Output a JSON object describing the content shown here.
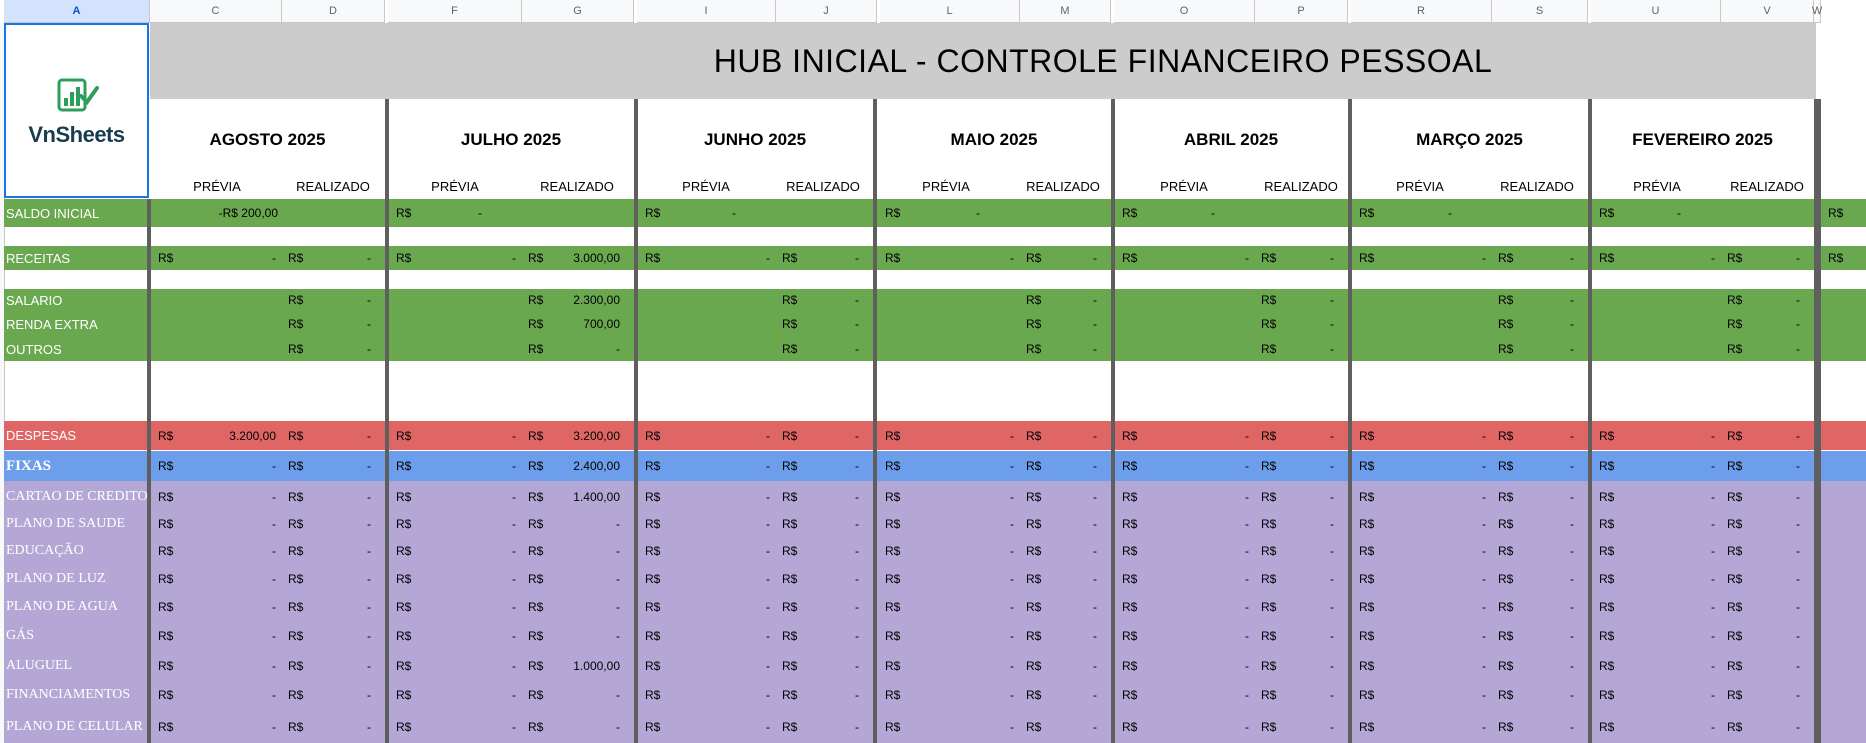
{
  "column_headers": [
    "A",
    "C",
    "D",
    "F",
    "G",
    "I",
    "J",
    "L",
    "M",
    "O",
    "P",
    "R",
    "S",
    "U",
    "V",
    "W"
  ],
  "title": "HUB INICIAL - CONTROLE FINANCEIRO PESSOAL",
  "logo_text": "VnSheets",
  "currency": "R$",
  "months": [
    {
      "name": "AGOSTO 2025",
      "previa": "PRÉVIA",
      "realizado": "REALIZADO"
    },
    {
      "name": "JULHO 2025",
      "previa": "PRÉVIA",
      "realizado": "REALIZADO"
    },
    {
      "name": "JUNHO 2025",
      "previa": "PRÉVIA",
      "realizado": "REALIZADO"
    },
    {
      "name": "MAIO 2025",
      "previa": "PRÉVIA",
      "realizado": "REALIZADO"
    },
    {
      "name": "ABRIL 2025",
      "previa": "PRÉVIA",
      "realizado": "REALIZADO"
    },
    {
      "name": "MARÇO 2025",
      "previa": "PRÉVIA",
      "realizado": "REALIZADO"
    },
    {
      "name": "FEVEREIRO 2025",
      "previa": "PRÉVIA",
      "realizado": "REALIZADO"
    }
  ],
  "rows": {
    "saldo_inicial": {
      "label": "SALDO INICIAL",
      "values": [
        [
          "-R$ 200,00",
          null
        ],
        [
          "-",
          null
        ],
        [
          "-",
          null
        ],
        [
          "-",
          null
        ],
        [
          "-",
          null
        ],
        [
          "-",
          null
        ],
        [
          "-",
          null
        ]
      ]
    },
    "receitas": {
      "label": "RECEITAS",
      "values": [
        [
          "-",
          "-"
        ],
        [
          "-",
          "3.000,00"
        ],
        [
          "-",
          "-"
        ],
        [
          "-",
          "-"
        ],
        [
          "-",
          "-"
        ],
        [
          "-",
          "-"
        ],
        [
          "-",
          "-"
        ]
      ]
    },
    "salario": {
      "label": "SALARIO",
      "values": [
        [
          null,
          "-"
        ],
        [
          null,
          "2.300,00"
        ],
        [
          null,
          "-"
        ],
        [
          null,
          "-"
        ],
        [
          null,
          "-"
        ],
        [
          null,
          "-"
        ],
        [
          null,
          "-"
        ]
      ]
    },
    "renda_extra": {
      "label": "RENDA EXTRA",
      "values": [
        [
          null,
          "-"
        ],
        [
          null,
          "700,00"
        ],
        [
          null,
          "-"
        ],
        [
          null,
          "-"
        ],
        [
          null,
          "-"
        ],
        [
          null,
          "-"
        ],
        [
          null,
          "-"
        ]
      ]
    },
    "outros": {
      "label": "OUTROS",
      "values": [
        [
          null,
          "-"
        ],
        [
          null,
          "-"
        ],
        [
          null,
          "-"
        ],
        [
          null,
          "-"
        ],
        [
          null,
          "-"
        ],
        [
          null,
          "-"
        ],
        [
          null,
          "-"
        ]
      ]
    },
    "despesas": {
      "label": "DESPESAS",
      "values": [
        [
          "3.200,00",
          "-"
        ],
        [
          "-",
          "3.200,00"
        ],
        [
          "-",
          "-"
        ],
        [
          "-",
          "-"
        ],
        [
          "-",
          "-"
        ],
        [
          "-",
          "-"
        ],
        [
          "-",
          "-"
        ]
      ]
    },
    "fixas": {
      "label": "FIXAS",
      "values": [
        [
          "-",
          "-"
        ],
        [
          "-",
          "2.400,00"
        ],
        [
          "-",
          "-"
        ],
        [
          "-",
          "-"
        ],
        [
          "-",
          "-"
        ],
        [
          "-",
          "-"
        ],
        [
          "-",
          "-"
        ]
      ]
    },
    "cartao": {
      "label": "CARTAO DE CREDITO",
      "values": [
        [
          "-",
          "-"
        ],
        [
          "-",
          "1.400,00"
        ],
        [
          "-",
          "-"
        ],
        [
          "-",
          "-"
        ],
        [
          "-",
          "-"
        ],
        [
          "-",
          "-"
        ],
        [
          "-",
          "-"
        ]
      ]
    },
    "saude": {
      "label": "PLANO DE SAUDE",
      "values": [
        [
          "-",
          "-"
        ],
        [
          "-",
          "-"
        ],
        [
          "-",
          "-"
        ],
        [
          "-",
          "-"
        ],
        [
          "-",
          "-"
        ],
        [
          "-",
          "-"
        ],
        [
          "-",
          "-"
        ]
      ]
    },
    "educacao": {
      "label": "EDUCAÇÃO",
      "values": [
        [
          "-",
          "-"
        ],
        [
          "-",
          "-"
        ],
        [
          "-",
          "-"
        ],
        [
          "-",
          "-"
        ],
        [
          "-",
          "-"
        ],
        [
          "-",
          "-"
        ],
        [
          "-",
          "-"
        ]
      ]
    },
    "luz": {
      "label": "PLANO DE LUZ",
      "values": [
        [
          "-",
          "-"
        ],
        [
          "-",
          "-"
        ],
        [
          "-",
          "-"
        ],
        [
          "-",
          "-"
        ],
        [
          "-",
          "-"
        ],
        [
          "-",
          "-"
        ],
        [
          "-",
          "-"
        ]
      ]
    },
    "agua": {
      "label": "PLANO DE AGUA",
      "values": [
        [
          "-",
          "-"
        ],
        [
          "-",
          "-"
        ],
        [
          "-",
          "-"
        ],
        [
          "-",
          "-"
        ],
        [
          "-",
          "-"
        ],
        [
          "-",
          "-"
        ],
        [
          "-",
          "-"
        ]
      ]
    },
    "gas": {
      "label": "GÁS",
      "values": [
        [
          "-",
          "-"
        ],
        [
          "-",
          "-"
        ],
        [
          "-",
          "-"
        ],
        [
          "-",
          "-"
        ],
        [
          "-",
          "-"
        ],
        [
          "-",
          "-"
        ],
        [
          "-",
          "-"
        ]
      ]
    },
    "aluguel": {
      "label": "ALUGUEL",
      "values": [
        [
          "-",
          "-"
        ],
        [
          "-",
          "1.000,00"
        ],
        [
          "-",
          "-"
        ],
        [
          "-",
          "-"
        ],
        [
          "-",
          "-"
        ],
        [
          "-",
          "-"
        ],
        [
          "-",
          "-"
        ]
      ]
    },
    "financiamentos": {
      "label": "FINANCIAMENTOS",
      "values": [
        [
          "-",
          "-"
        ],
        [
          "-",
          "-"
        ],
        [
          "-",
          "-"
        ],
        [
          "-",
          "-"
        ],
        [
          "-",
          "-"
        ],
        [
          "-",
          "-"
        ],
        [
          "-",
          "-"
        ]
      ]
    },
    "celular": {
      "label": "PLANO DE CELULAR",
      "values": [
        [
          "-",
          "-"
        ],
        [
          "-",
          "-"
        ],
        [
          "-",
          "-"
        ],
        [
          "-",
          "-"
        ],
        [
          "-",
          "-"
        ],
        [
          "-",
          "-"
        ],
        [
          "-",
          "-"
        ]
      ]
    }
  },
  "colors": {
    "green": "#6aa84f",
    "red": "#e06666",
    "blue": "#6d9eeb",
    "purple": "#b4a7d6",
    "title_gray": "#cccccc",
    "selection": "#1a73e8"
  }
}
